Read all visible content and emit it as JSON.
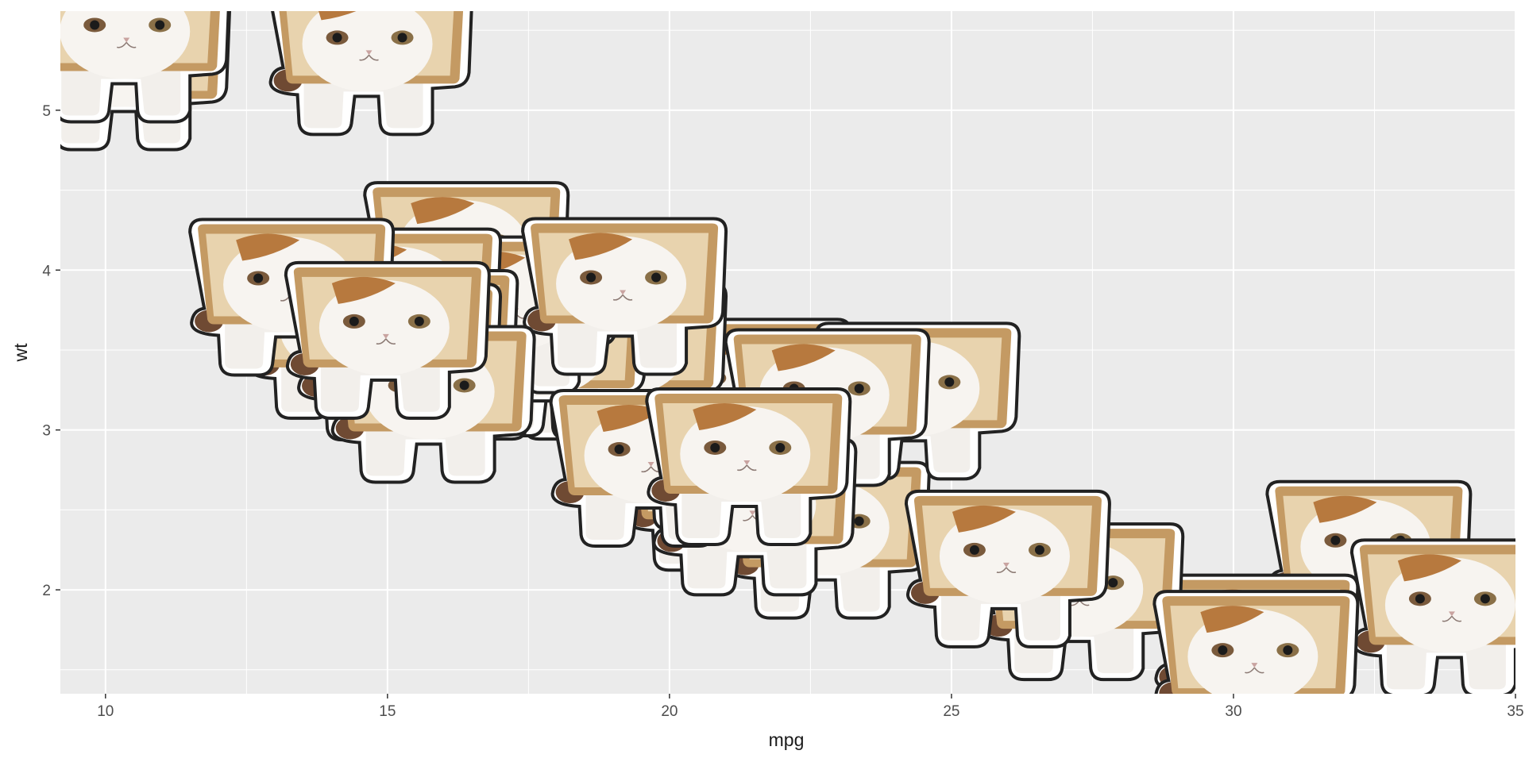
{
  "chart_data": {
    "type": "scatter",
    "marker": "cat-in-bread-image",
    "title": "",
    "xlabel": "mpg",
    "ylabel": "wt",
    "xlim": [
      9.2,
      35.0
    ],
    "ylim": [
      1.35,
      5.62
    ],
    "x_ticks": [
      10,
      15,
      20,
      25,
      30,
      35
    ],
    "x_tick_labels": [
      "10",
      "15",
      "20",
      "25",
      "30",
      "35"
    ],
    "y_ticks": [
      2,
      3,
      4,
      5
    ],
    "y_tick_labels": [
      "2",
      "3",
      "4",
      "5"
    ],
    "grid": true,
    "legend": "none",
    "colors": {
      "panel_background": "#ebebeb",
      "grid_line": "#ffffff",
      "bread_crust": "#c49a63",
      "bread_inner": "#e8d3ae",
      "cat_fur": "#f7f4f0",
      "cat_patch": "#b7793e"
    },
    "points": [
      {
        "x": 21.0,
        "y": 2.62
      },
      {
        "x": 21.0,
        "y": 2.875
      },
      {
        "x": 22.8,
        "y": 2.32
      },
      {
        "x": 21.4,
        "y": 3.215
      },
      {
        "x": 18.7,
        "y": 3.44
      },
      {
        "x": 18.1,
        "y": 3.46
      },
      {
        "x": 14.3,
        "y": 3.57
      },
      {
        "x": 24.4,
        "y": 3.19
      },
      {
        "x": 22.8,
        "y": 3.15
      },
      {
        "x": 19.2,
        "y": 3.44
      },
      {
        "x": 17.8,
        "y": 3.44
      },
      {
        "x": 16.4,
        "y": 4.07
      },
      {
        "x": 17.3,
        "y": 3.73
      },
      {
        "x": 15.2,
        "y": 3.78
      },
      {
        "x": 10.4,
        "y": 5.25
      },
      {
        "x": 10.4,
        "y": 5.424
      },
      {
        "x": 14.7,
        "y": 5.345
      },
      {
        "x": 32.4,
        "y": 2.2
      },
      {
        "x": 30.4,
        "y": 1.615
      },
      {
        "x": 33.9,
        "y": 1.835
      },
      {
        "x": 21.5,
        "y": 2.465
      },
      {
        "x": 15.5,
        "y": 3.52
      },
      {
        "x": 15.2,
        "y": 3.435
      },
      {
        "x": 13.3,
        "y": 3.84
      },
      {
        "x": 19.2,
        "y": 3.845
      },
      {
        "x": 27.3,
        "y": 1.935
      },
      {
        "x": 26.0,
        "y": 2.14
      },
      {
        "x": 30.4,
        "y": 1.513
      },
      {
        "x": 15.8,
        "y": 3.17
      },
      {
        "x": 19.7,
        "y": 2.77
      },
      {
        "x": 15.0,
        "y": 3.57
      },
      {
        "x": 21.4,
        "y": 2.78
      }
    ]
  }
}
